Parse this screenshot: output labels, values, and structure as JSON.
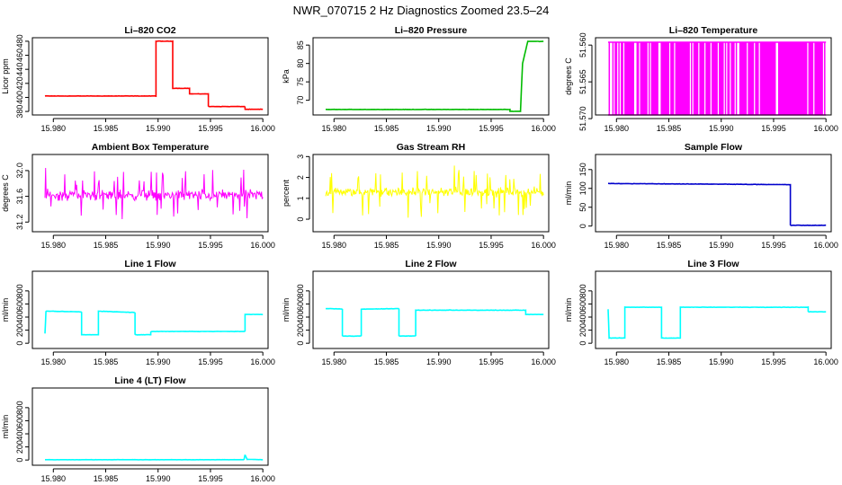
{
  "title": "NWR_070715  2 Hz Diagnostics Zoomed 23.5–24",
  "x_ticks": [
    "15.980",
    "15.985",
    "15.990",
    "15.995",
    "16.000"
  ],
  "chart_data": [
    {
      "type": "line",
      "title": "Li–820 CO2",
      "ylabel": "Licor ppm",
      "color": "#ff0000",
      "xlim": [
        15.978,
        16.0005
      ],
      "ylim": [
        375,
        485
      ],
      "yticks": [
        {
          "v": 380,
          "t": "380"
        },
        {
          "v": 400,
          "t": "400"
        },
        {
          "v": 420,
          "t": "420"
        },
        {
          "v": 440,
          "t": "440"
        },
        {
          "v": 460,
          "t": "460"
        },
        {
          "v": 480,
          "t": "480"
        }
      ],
      "noise": 0.4,
      "spikes": 0,
      "points": [
        [
          15.9792,
          402
        ],
        [
          15.9898,
          402
        ],
        [
          15.9898,
          480
        ],
        [
          15.9914,
          480
        ],
        [
          15.9914,
          413
        ],
        [
          15.993,
          413
        ],
        [
          15.993,
          405
        ],
        [
          15.9948,
          405
        ],
        [
          15.9948,
          387
        ],
        [
          15.9983,
          387
        ],
        [
          15.9983,
          383
        ],
        [
          16.0,
          383
        ]
      ]
    },
    {
      "type": "line",
      "title": "Li–820 Pressure",
      "ylabel": "kPa",
      "color": "#00bb00",
      "xlim": [
        15.978,
        16.0005
      ],
      "ylim": [
        66,
        87
      ],
      "yticks": [
        {
          "v": 70,
          "t": "70"
        },
        {
          "v": 75,
          "t": "75"
        },
        {
          "v": 80,
          "t": "80"
        },
        {
          "v": 85,
          "t": "85"
        }
      ],
      "noise": 0.05,
      "spikes": 0,
      "points": [
        [
          15.9792,
          67.5
        ],
        [
          15.9968,
          67.5
        ],
        [
          15.9968,
          67
        ],
        [
          15.9978,
          67
        ],
        [
          15.998,
          80
        ],
        [
          15.9985,
          86
        ],
        [
          16.0,
          86
        ]
      ]
    },
    {
      "type": "bars",
      "title": "Li–820 Temperature",
      "ylabel": "degrees C",
      "color": "#ff00ff",
      "xlim": [
        15.978,
        16.0005
      ],
      "ylim": [
        51.5695,
        51.559
      ],
      "yticks": [
        {
          "v": 51.57,
          "t": "51.570"
        },
        {
          "v": 51.565,
          "t": "51.565"
        },
        {
          "v": 51.56,
          "t": "51.560"
        }
      ],
      "noise": 0,
      "spikes": 0,
      "count": 180,
      "points": [
        [
          15.9792,
          51.5695
        ],
        [
          16.0,
          51.5695
        ]
      ]
    },
    {
      "type": "noise",
      "title": "Ambient Box Temperature",
      "ylabel": "degrees C",
      "color": "#ff00ff",
      "xlim": [
        15.978,
        16.0005
      ],
      "ylim": [
        31.05,
        32.25
      ],
      "yticks": [
        {
          "v": 31.2,
          "t": "31.2"
        },
        {
          "v": 31.6,
          "t": "31.6"
        },
        {
          "v": 32.0,
          "t": "32.0"
        }
      ],
      "noise": 0.12,
      "spikes": 0.35,
      "points": [
        [
          15.9792,
          31.62
        ],
        [
          16.0,
          31.62
        ]
      ]
    },
    {
      "type": "noise",
      "title": "Gas Stream RH",
      "ylabel": "percent",
      "color": "#ffff00",
      "xlim": [
        15.978,
        16.0005
      ],
      "ylim": [
        -0.6,
        3.1
      ],
      "yticks": [
        {
          "v": 0,
          "t": "0"
        },
        {
          "v": 1,
          "t": "1"
        },
        {
          "v": 2,
          "t": "2"
        },
        {
          "v": 3,
          "t": "3"
        }
      ],
      "noise": 0.3,
      "spikes": 1.2,
      "points": [
        [
          15.9792,
          1.3
        ],
        [
          16.0,
          1.3
        ]
      ]
    },
    {
      "type": "line",
      "title": "Sample Flow",
      "ylabel": "ml/min",
      "color": "#0000cc",
      "xlim": [
        15.978,
        16.0005
      ],
      "ylim": [
        -15,
        190
      ],
      "yticks": [
        {
          "v": 0,
          "t": "0"
        },
        {
          "v": 50,
          "t": "50"
        },
        {
          "v": 100,
          "t": "100"
        },
        {
          "v": 150,
          "t": "150"
        }
      ],
      "noise": 0.8,
      "spikes": 0,
      "points": [
        [
          15.9792,
          113
        ],
        [
          15.9966,
          110
        ],
        [
          15.9966,
          2
        ],
        [
          16.0,
          2
        ]
      ]
    },
    {
      "type": "line",
      "title": "Line 1 Flow",
      "ylabel": "ml/min",
      "color": "#00ffff",
      "xlim": [
        15.978,
        16.0005
      ],
      "ylim": [
        -80,
        1100
      ],
      "yticks": [
        {
          "v": 0,
          "t": "0"
        },
        {
          "v": 200,
          "t": "200"
        },
        {
          "v": 400,
          "t": "400"
        },
        {
          "v": 600,
          "t": "600"
        },
        {
          "v": 800,
          "t": "800"
        }
      ],
      "noise": 4,
      "spikes": 0,
      "points": [
        [
          15.9792,
          150
        ],
        [
          15.9793,
          490
        ],
        [
          15.9827,
          480
        ],
        [
          15.9827,
          130
        ],
        [
          15.9843,
          130
        ],
        [
          15.9843,
          490
        ],
        [
          15.9878,
          470
        ],
        [
          15.9878,
          130
        ],
        [
          15.9893,
          130
        ],
        [
          15.9893,
          180
        ],
        [
          15.9983,
          180
        ],
        [
          15.9983,
          440
        ],
        [
          16.0,
          440
        ]
      ]
    },
    {
      "type": "line",
      "title": "Line 2 Flow",
      "ylabel": "ml/min",
      "color": "#00ffff",
      "xlim": [
        15.978,
        16.0005
      ],
      "ylim": [
        -80,
        1100
      ],
      "yticks": [
        {
          "v": 0,
          "t": "0"
        },
        {
          "v": 200,
          "t": "200"
        },
        {
          "v": 400,
          "t": "400"
        },
        {
          "v": 600,
          "t": "600"
        },
        {
          "v": 800,
          "t": "800"
        }
      ],
      "noise": 4,
      "spikes": 0,
      "points": [
        [
          15.9792,
          530
        ],
        [
          15.9808,
          525
        ],
        [
          15.9808,
          110
        ],
        [
          15.9826,
          110
        ],
        [
          15.9826,
          520
        ],
        [
          15.9862,
          530
        ],
        [
          15.9862,
          110
        ],
        [
          15.9878,
          110
        ],
        [
          15.9878,
          505
        ],
        [
          15.9983,
          505
        ],
        [
          15.9983,
          440
        ],
        [
          16.0,
          440
        ]
      ]
    },
    {
      "type": "line",
      "title": "Line 3 Flow",
      "ylabel": "ml/min",
      "color": "#00ffff",
      "xlim": [
        15.978,
        16.0005
      ],
      "ylim": [
        -80,
        1100
      ],
      "yticks": [
        {
          "v": 0,
          "t": "0"
        },
        {
          "v": 200,
          "t": "200"
        },
        {
          "v": 400,
          "t": "400"
        },
        {
          "v": 600,
          "t": "600"
        },
        {
          "v": 800,
          "t": "800"
        }
      ],
      "noise": 4,
      "spikes": 0,
      "points": [
        [
          15.9792,
          520
        ],
        [
          15.9793,
          80
        ],
        [
          15.9808,
          80
        ],
        [
          15.9808,
          550
        ],
        [
          15.9843,
          550
        ],
        [
          15.9843,
          80
        ],
        [
          15.9861,
          80
        ],
        [
          15.9861,
          550
        ],
        [
          15.9983,
          550
        ],
        [
          15.9983,
          480
        ],
        [
          16.0,
          480
        ]
      ]
    },
    {
      "type": "line",
      "title": "Line 4 (LT) Flow",
      "ylabel": "ml/min",
      "color": "#00ffff",
      "xlim": [
        15.978,
        16.0005
      ],
      "ylim": [
        -80,
        1100
      ],
      "yticks": [
        {
          "v": 0,
          "t": "0"
        },
        {
          "v": 200,
          "t": "200"
        },
        {
          "v": 400,
          "t": "400"
        },
        {
          "v": 600,
          "t": "600"
        },
        {
          "v": 800,
          "t": "800"
        }
      ],
      "noise": 2,
      "spikes": 0,
      "points": [
        [
          15.9792,
          5
        ],
        [
          15.9982,
          5
        ],
        [
          15.9983,
          80
        ],
        [
          15.9985,
          10
        ],
        [
          16.0,
          5
        ]
      ]
    }
  ]
}
